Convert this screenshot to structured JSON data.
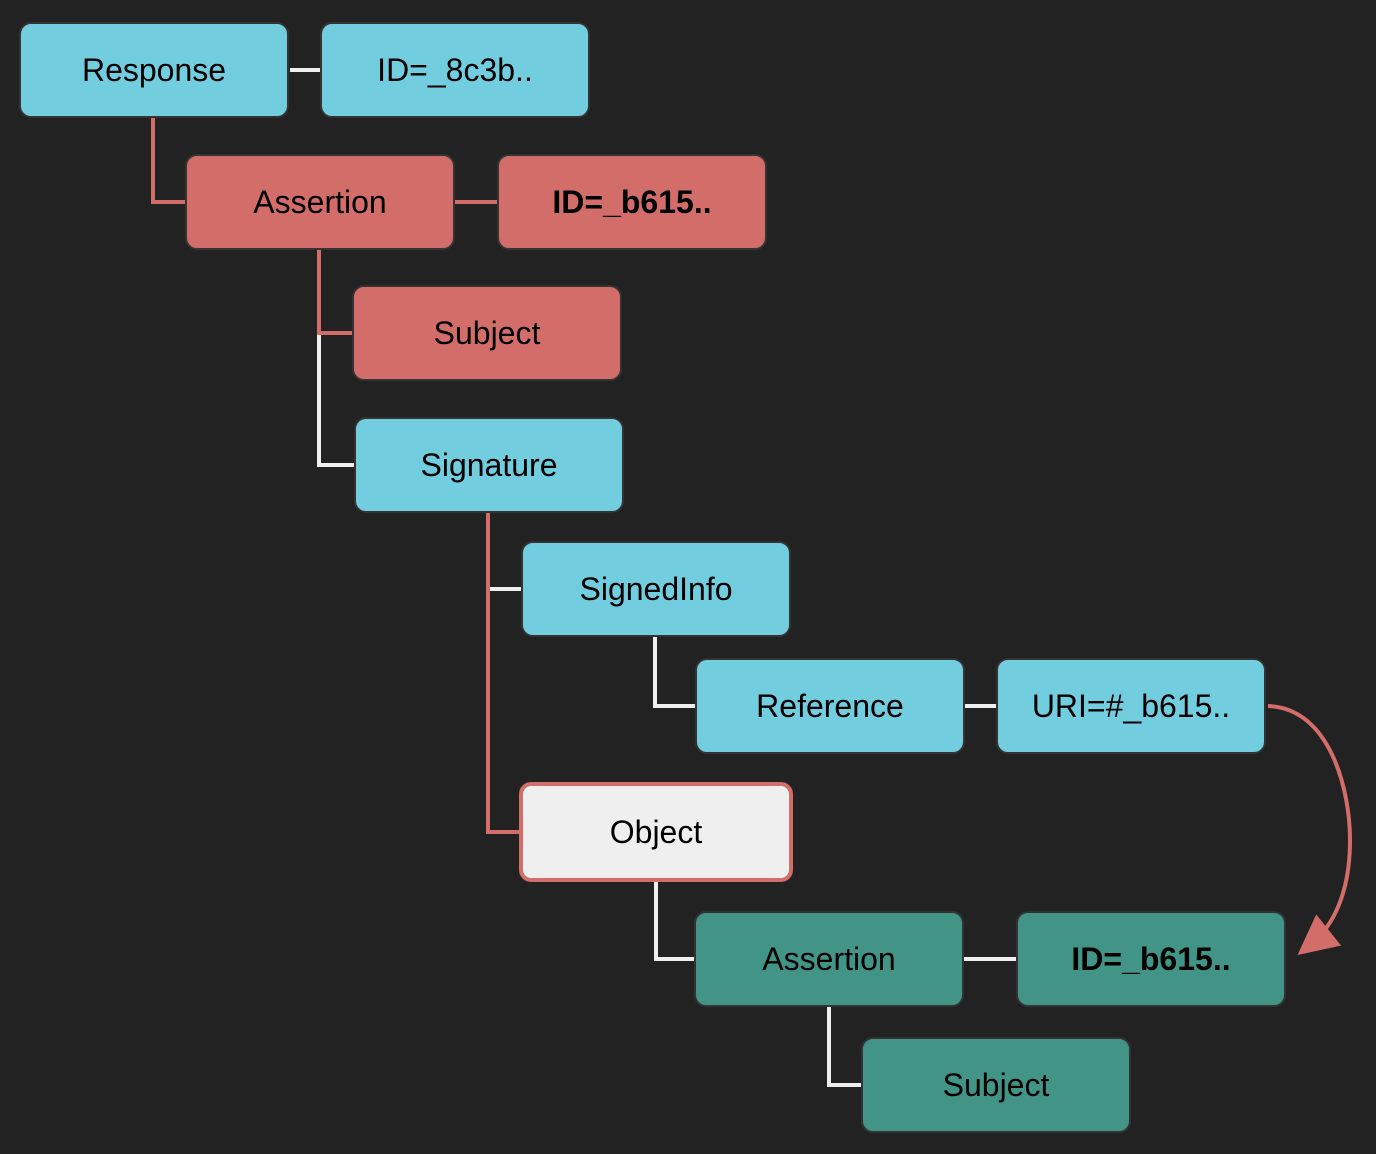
{
  "colors": {
    "background": "#222222",
    "blue": "#72cddf",
    "red": "#d36d69",
    "teal": "#419486",
    "white": "#efefef",
    "connector_white": "#efefef",
    "connector_red": "#d36d69"
  },
  "nodes": {
    "response": "Response",
    "response_id": "ID=_8c3b..",
    "assertion": "Assertion",
    "assertion_id": "ID=_b615..",
    "subject": "Subject",
    "signature": "Signature",
    "signed_info": "SignedInfo",
    "reference": "Reference",
    "reference_uri": "URI=#_b615..",
    "object": "Object",
    "wrapped_assertion": "Assertion",
    "wrapped_assertion_id": "ID=_b615..",
    "wrapped_subject": "Subject"
  }
}
